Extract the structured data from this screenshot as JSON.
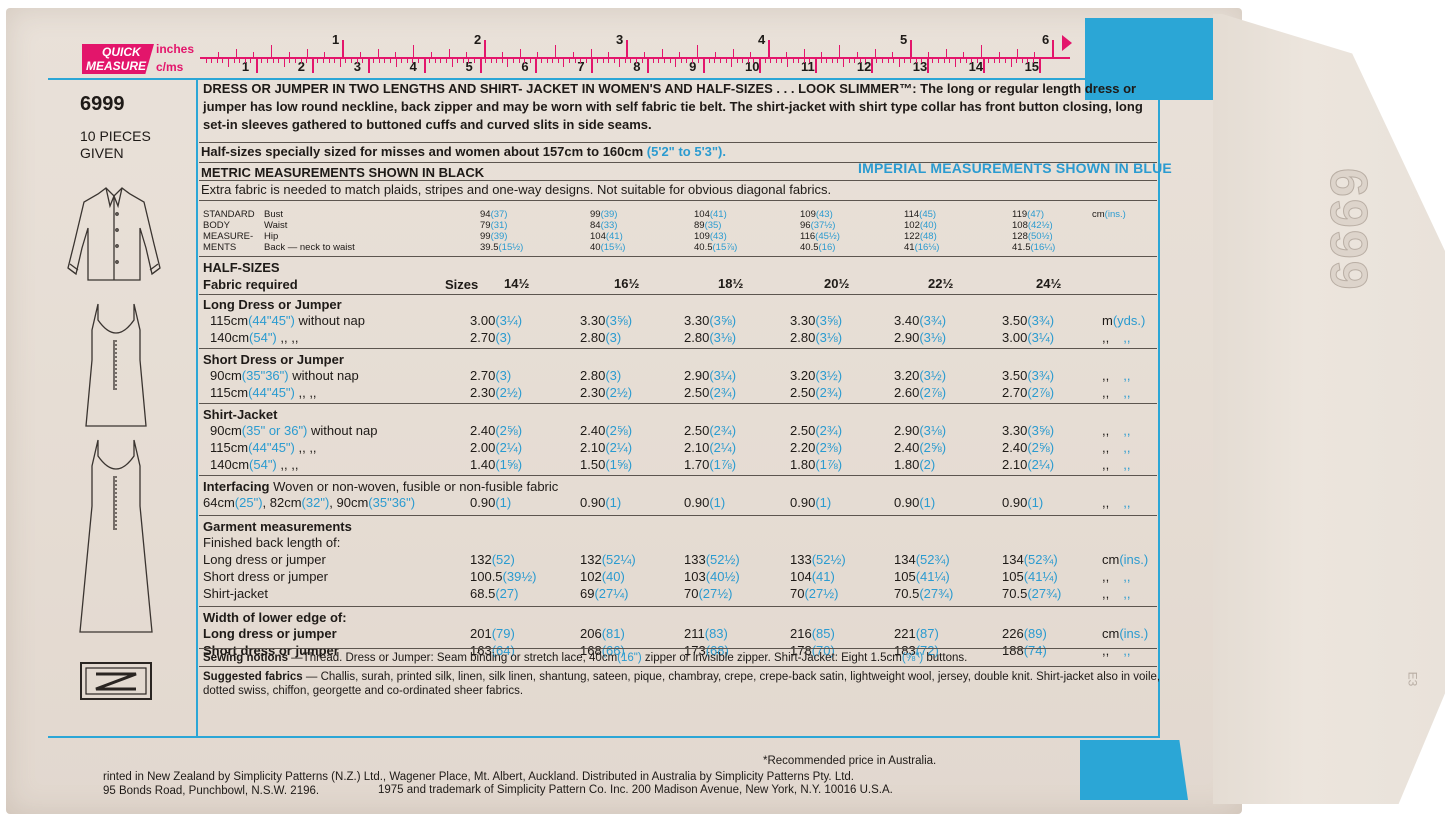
{
  "ruler": {
    "brand_line1": "QUICK",
    "brand_line2": "MEASURE",
    "inches_label": "inches",
    "cms_label": "c/ms",
    "inch_marks": [
      "1",
      "2",
      "3",
      "4",
      "5",
      "6"
    ],
    "cm_marks": [
      "1",
      "2",
      "3",
      "4",
      "5",
      "6",
      "7",
      "8",
      "9",
      "10",
      "11",
      "12",
      "13",
      "14",
      "15"
    ]
  },
  "pattern": {
    "number": "6999",
    "pieces_line1": "10 PIECES",
    "pieces_line2": "GIVEN",
    "flap_number": "6999",
    "flap_small": "E3"
  },
  "description": {
    "headline": "DRESS OR JUMPER IN TWO LENGTHS AND SHIRT- JACKET IN WOMEN'S AND HALF-SIZES . . . LOOK SLIMMER™",
    "text": ": The long or regular length dress or jumper has low round neckline, back zipper and may be worn with self fabric tie belt. The shirt-jacket with shirt type collar has front button closing, long set-in sleeves gathered to buttoned cuffs and curved slits in side seams.",
    "half_sizes_note": "Half-sizes specially sized for misses and women about 157cm to 160cm ",
    "half_sizes_imperial": "(5'2\" to 5'3\").",
    "metric_label": "METRIC MEASUREMENTS SHOWN IN BLACK",
    "imperial_label": "IMPERIAL MEASUREMENTS SHOWN IN BLUE",
    "extra_fabric": "Extra fabric is needed to match plaids, stripes and one-way designs. Not suitable for obvious diagonal fabrics."
  },
  "body_measurements": {
    "label_lines": [
      "STANDARD",
      "BODY",
      "MEASURE-",
      "MENTS"
    ],
    "rows": [
      "Bust",
      "Waist",
      "Hip",
      "Back — neck to waist"
    ],
    "columns": [
      {
        "m": [
          "94",
          "79",
          "99",
          "39.5"
        ],
        "i": [
          "(37)",
          "(31)",
          "(39)",
          "(15½)"
        ]
      },
      {
        "m": [
          "99",
          "84",
          "104",
          "40"
        ],
        "i": [
          "(39)",
          "(33)",
          "(41)",
          "(15¾)"
        ]
      },
      {
        "m": [
          "104",
          "89",
          "109",
          "40.5"
        ],
        "i": [
          "(41)",
          "(35)",
          "(43)",
          "(15⅞)"
        ]
      },
      {
        "m": [
          "109",
          "96",
          "116",
          "40.5"
        ],
        "i": [
          "(43)",
          "(37½)",
          "(45½)",
          "(16)"
        ]
      },
      {
        "m": [
          "114",
          "102",
          "122",
          "41"
        ],
        "i": [
          "(45)",
          "(40)",
          "(48)",
          "(16⅛)"
        ]
      },
      {
        "m": [
          "119",
          "108",
          "128",
          "41.5"
        ],
        "i": [
          "(47)",
          "(42½)",
          "(50½)",
          "(16¼)"
        ]
      }
    ],
    "unit_metric": "cm",
    "unit_imperial": "(ins.)"
  },
  "half_sizes": {
    "title": "HALF-SIZES",
    "fabric_required": "Fabric required",
    "sizes_label": "Sizes",
    "sizes": [
      "14½",
      "16½",
      "18½",
      "20½",
      "22½",
      "24½"
    ]
  },
  "sections": [
    {
      "title": "Long Dress or Jumper",
      "rows": [
        {
          "label_m": "115cm",
          "label_i": "(44\"45\")",
          "label_rest": " without nap",
          "values": [
            [
              "3.00",
              "(3¼)"
            ],
            [
              "3.30",
              "(3⅝)"
            ],
            [
              "3.30",
              "(3⅝)"
            ],
            [
              "3.30",
              "(3⅝)"
            ],
            [
              "3.40",
              "(3¾)"
            ],
            [
              "3.50",
              "(3¾)"
            ]
          ],
          "unit_m": "m",
          "unit_i": "(yds.)"
        },
        {
          "label_m": "140cm",
          "label_i": "(54\")",
          "label_rest": "      ,,    ,,",
          "values": [
            [
              "2.70",
              "(3)"
            ],
            [
              "2.80",
              "(3)"
            ],
            [
              "2.80",
              "(3⅛)"
            ],
            [
              "2.80",
              "(3⅛)"
            ],
            [
              "2.90",
              "(3⅛)"
            ],
            [
              "3.00",
              "(3¼)"
            ]
          ],
          "unit_m": ",,",
          "unit_i": ",,"
        }
      ]
    },
    {
      "title": "Short Dress or Jumper",
      "rows": [
        {
          "label_m": "90cm",
          "label_i": "(35\"36\")",
          "label_rest": " without nap",
          "values": [
            [
              "2.70",
              "(3)"
            ],
            [
              "2.80",
              "(3)"
            ],
            [
              "2.90",
              "(3¼)"
            ],
            [
              "3.20",
              "(3½)"
            ],
            [
              "3.20",
              "(3½)"
            ],
            [
              "3.50",
              "(3¾)"
            ]
          ],
          "unit_m": ",,",
          "unit_i": ",,"
        },
        {
          "label_m": "115cm",
          "label_i": "(44\"45\")",
          "label_rest": "    ,,    ,,",
          "values": [
            [
              "2.30",
              "(2½)"
            ],
            [
              "2.30",
              "(2½)"
            ],
            [
              "2.50",
              "(2¾)"
            ],
            [
              "2.50",
              "(2¾)"
            ],
            [
              "2.60",
              "(2⅞)"
            ],
            [
              "2.70",
              "(2⅞)"
            ]
          ],
          "unit_m": ",,",
          "unit_i": ",,"
        }
      ]
    },
    {
      "title": "Shirt-Jacket",
      "rows": [
        {
          "label_m": "90cm",
          "label_i": "(35\" or 36\")",
          "label_rest": " without nap",
          "values": [
            [
              "2.40",
              "(2⅝)"
            ],
            [
              "2.40",
              "(2⅝)"
            ],
            [
              "2.50",
              "(2¾)"
            ],
            [
              "2.50",
              "(2¾)"
            ],
            [
              "2.90",
              "(3⅛)"
            ],
            [
              "3.30",
              "(3⅝)"
            ]
          ],
          "unit_m": ",,",
          "unit_i": ",,"
        },
        {
          "label_m": "115cm",
          "label_i": "(44\"45\")",
          "label_rest": "     ,,    ,,",
          "values": [
            [
              "2.00",
              "(2¼)"
            ],
            [
              "2.10",
              "(2¼)"
            ],
            [
              "2.10",
              "(2¼)"
            ],
            [
              "2.20",
              "(2⅜)"
            ],
            [
              "2.40",
              "(2⅝)"
            ],
            [
              "2.40",
              "(2⅝)"
            ]
          ],
          "unit_m": ",,",
          "unit_i": ",,"
        },
        {
          "label_m": "140cm",
          "label_i": "(54\")",
          "label_rest": "       ,,    ,,",
          "values": [
            [
              "1.40",
              "(1⅝)"
            ],
            [
              "1.50",
              "(1⅝)"
            ],
            [
              "1.70",
              "(1⅞)"
            ],
            [
              "1.80",
              "(1⅞)"
            ],
            [
              "1.80",
              "(2)"
            ],
            [
              "2.10",
              "(2¼)"
            ]
          ],
          "unit_m": ",,",
          "unit_i": ",,"
        }
      ]
    }
  ],
  "interfacing": {
    "title": "Interfacing",
    "desc": "  Woven or non-woven, fusible or non-fusible fabric",
    "widths_text_1": "64cm",
    "widths_i_1": "(25\")",
    "widths_text_2": ", 82cm",
    "widths_i_2": "(32\")",
    "widths_text_3": ", 90cm",
    "widths_i_3": "(35\"36\")",
    "values": [
      [
        "0.90",
        "(1)"
      ],
      [
        "0.90",
        "(1)"
      ],
      [
        "0.90",
        "(1)"
      ],
      [
        "0.90",
        "(1)"
      ],
      [
        "0.90",
        "(1)"
      ],
      [
        "0.90",
        "(1)"
      ]
    ],
    "unit_m": ",,",
    "unit_i": ",,"
  },
  "garment": {
    "title": "Garment measurements",
    "subtitle": "Finished back length of:",
    "rows": [
      {
        "label": "Long dress or jumper",
        "values": [
          [
            "132",
            "(52)"
          ],
          [
            "132",
            "(52¼)"
          ],
          [
            "133",
            "(52½)"
          ],
          [
            "133",
            "(52½)"
          ],
          [
            "134",
            "(52¾)"
          ],
          [
            "134",
            "(52¾)"
          ]
        ],
        "unit_m": "cm",
        "unit_i": "(ins.)"
      },
      {
        "label": "Short dress or jumper",
        "values": [
          [
            "100.5",
            "(39½)"
          ],
          [
            "102",
            "(40)"
          ],
          [
            "103",
            "(40½)"
          ],
          [
            "104",
            "(41)"
          ],
          [
            "105",
            "(41¼)"
          ],
          [
            "105",
            "(41¼)"
          ]
        ],
        "unit_m": ",,",
        "unit_i": ",,"
      },
      {
        "label": "Shirt-jacket",
        "values": [
          [
            "68.5",
            "(27)"
          ],
          [
            "69",
            "(27¼)"
          ],
          [
            "70",
            "(27½)"
          ],
          [
            "70",
            "(27½)"
          ],
          [
            "70.5",
            "(27¾)"
          ],
          [
            "70.5",
            "(27¾)"
          ]
        ],
        "unit_m": ",,",
        "unit_i": ",,"
      }
    ],
    "width_title": "Width of lower edge of:",
    "width_rows": [
      {
        "label": "Long dress or jumper",
        "values": [
          [
            "201",
            "(79)"
          ],
          [
            "206",
            "(81)"
          ],
          [
            "211",
            "(83)"
          ],
          [
            "216",
            "(85)"
          ],
          [
            "221",
            "(87)"
          ],
          [
            "226",
            "(89)"
          ]
        ],
        "unit_m": "cm",
        "unit_i": "(ins.)"
      },
      {
        "label": "Short dress or jumper",
        "values": [
          [
            "163",
            "(64)"
          ],
          [
            "168",
            "(66)"
          ],
          [
            "173",
            "(68)"
          ],
          [
            "178",
            "(70)"
          ],
          [
            "183",
            "(72)"
          ],
          [
            "188",
            "(74)"
          ]
        ],
        "unit_m": ",,",
        "unit_i": ",,"
      }
    ]
  },
  "notions": {
    "title": "Sewing notions",
    "text_1": " —Thread. Dress or Jumper: Seam binding or stretch lace, 40cm",
    "text_i1": "(16\")",
    "text_2": " zipper or invisible zipper. Shirt-Jacket: Eight 1.5cm",
    "text_i2": "(⅝\")",
    "text_3": " buttons."
  },
  "suggested": {
    "title": "Suggested fabrics",
    "text": " — Challis, surah, printed silk, linen, silk linen, shantung, sateen, pique, chambray, crepe, crepe-back satin, lightweight wool, jersey, double knit. Shirt-jacket also in voile, dotted swiss, chiffon, georgette and co-ordinated sheer fabrics."
  },
  "footer": {
    "price_note": "*Recommended price in Australia.",
    "printed_line1": "rinted in New Zealand by Simplicity Patterns (N.Z.) Ltd., Wagener Place, Mt. Albert, Auckland. Distributed in Australia by Simplicity Patterns Pty. Ltd.",
    "printed_line2": "95 Bonds Road, Punchbowl, N.S.W. 2196.",
    "copyright": "1975 and trademark of Simplicity Pattern Co. Inc. 200 Madison Avenue, New York, N.Y. 10016 U.S.A."
  },
  "colors": {
    "accent_blue": "#2ba6d6",
    "imperial_blue": "#2b9bd0",
    "ruler_magenta": "#e3156b",
    "paper": "#e6ddd4"
  }
}
